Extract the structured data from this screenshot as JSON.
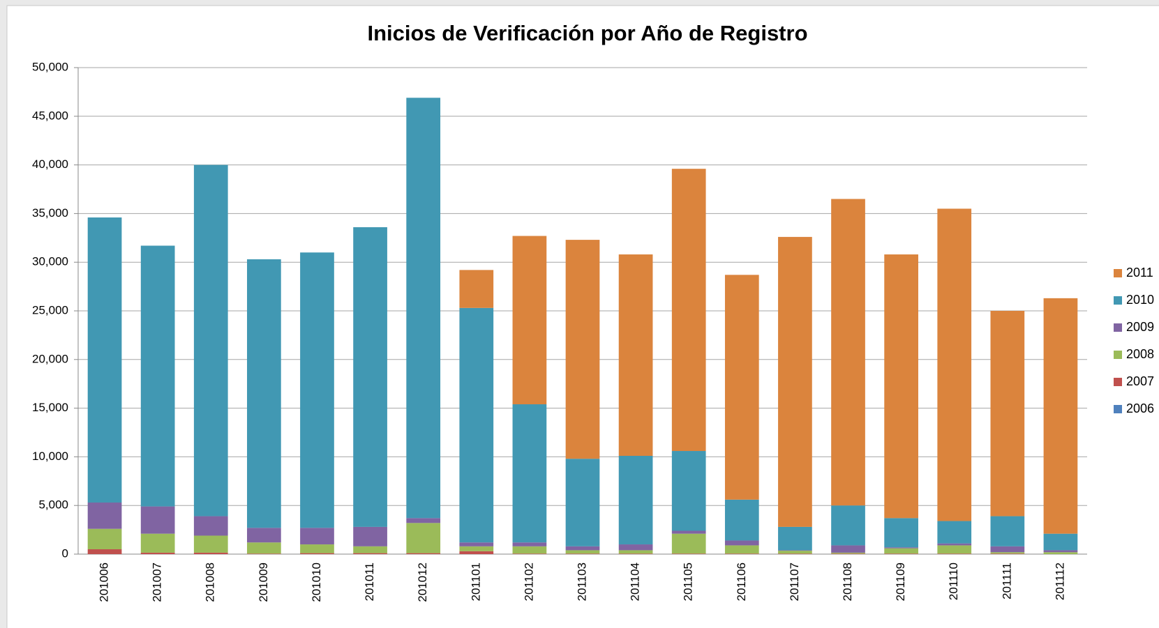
{
  "chart_data": {
    "type": "stacked_bar",
    "title": "Inicios de Verificación por Año de Registro",
    "categories": [
      "201006",
      "201007",
      "201008",
      "201009",
      "201010",
      "201011",
      "201012",
      "201101",
      "201102",
      "201103",
      "201104",
      "201105",
      "201106",
      "201107",
      "201108",
      "201109",
      "201110",
      "201111",
      "201112"
    ],
    "series": [
      {
        "name": "2006",
        "color": "#4f81bd",
        "values": [
          0,
          0,
          0,
          0,
          0,
          0,
          0,
          0,
          0,
          0,
          0,
          0,
          0,
          0,
          0,
          0,
          0,
          0,
          0
        ]
      },
      {
        "name": "2007",
        "color": "#c0504d",
        "values": [
          500,
          150,
          150,
          50,
          100,
          100,
          100,
          300,
          50,
          50,
          50,
          50,
          50,
          50,
          50,
          50,
          50,
          50,
          0
        ]
      },
      {
        "name": "2008",
        "color": "#9bbb59",
        "values": [
          2100,
          1950,
          1750,
          1150,
          900,
          700,
          3100,
          500,
          750,
          350,
          350,
          2050,
          850,
          300,
          100,
          550,
          850,
          150,
          200
        ]
      },
      {
        "name": "2009",
        "color": "#8064a2",
        "values": [
          2700,
          2800,
          2000,
          1500,
          1700,
          2000,
          500,
          400,
          400,
          400,
          600,
          300,
          500,
          50,
          750,
          100,
          200,
          600,
          200
        ]
      },
      {
        "name": "2010",
        "color": "#4198b3",
        "values": [
          29300,
          26800,
          36100,
          27600,
          28300,
          30800,
          43200,
          24100,
          14200,
          9000,
          9100,
          8200,
          4200,
          2400,
          4100,
          3000,
          2300,
          3100,
          1700
        ]
      },
      {
        "name": "2011",
        "color": "#db843d",
        "values": [
          0,
          0,
          0,
          0,
          0,
          0,
          0,
          3900,
          17300,
          22500,
          20700,
          29000,
          23100,
          29800,
          31500,
          27100,
          32100,
          21100,
          24200
        ]
      }
    ],
    "ylim": [
      0,
      50000
    ],
    "yticks": [
      0,
      {
        "value": 5000,
        "label": "5,000"
      },
      {
        "value": 10000,
        "label": "10,000"
      },
      {
        "value": 15000,
        "label": "15,000"
      },
      {
        "value": 20000,
        "label": "20,000"
      },
      {
        "value": 25000,
        "label": "25,000"
      },
      {
        "value": 30000,
        "label": "30,000"
      },
      {
        "value": 35000,
        "label": "35,000"
      },
      {
        "value": 40000,
        "label": "40,000"
      },
      {
        "value": 45000,
        "label": "45,000"
      },
      {
        "value": 50000,
        "label": "50,000"
      }
    ],
    "grid": true,
    "legend": "right"
  }
}
